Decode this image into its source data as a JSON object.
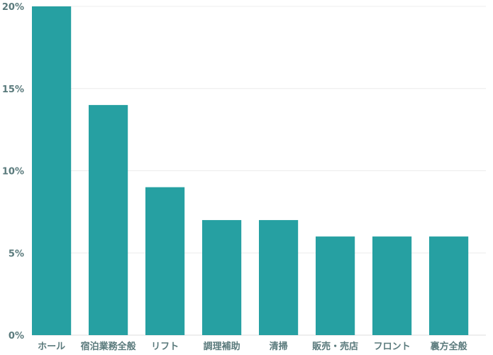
{
  "chart_data": {
    "type": "bar",
    "categories": [
      "ホール",
      "宿泊業務全般",
      "リフト",
      "調理補助",
      "清掃",
      "販売・売店",
      "フロント",
      "裏方全般"
    ],
    "values": [
      20,
      14,
      9,
      7,
      7,
      6,
      6,
      6
    ],
    "y_ticks": [
      "0%",
      "5%",
      "10%",
      "15%",
      "20%"
    ],
    "y_tick_values": [
      0,
      5,
      10,
      15,
      20
    ],
    "ylim": [
      0,
      20
    ],
    "grid": true,
    "bar_color": "#26a0a2",
    "title": "",
    "xlabel": "",
    "ylabel": ""
  }
}
